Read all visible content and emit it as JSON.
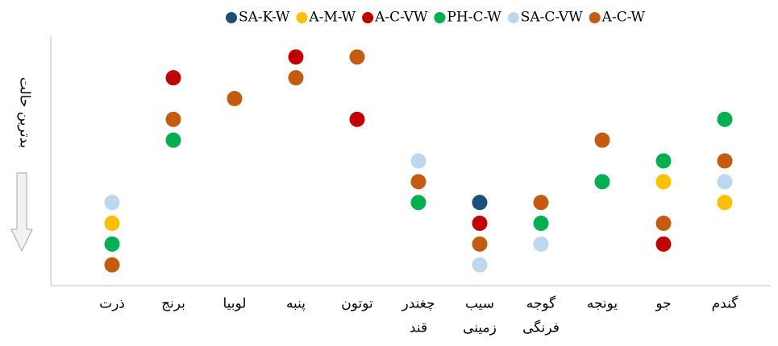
{
  "chart_data": {
    "type": "dot",
    "y_label": "بدترین حالت",
    "categories": [
      [
        "ذرت"
      ],
      [
        "برنج"
      ],
      [
        "لوبیا"
      ],
      [
        "پنبه"
      ],
      [
        "توتون"
      ],
      [
        "چغندر",
        "قند"
      ],
      [
        "سیب",
        "زمینی"
      ],
      [
        "گوجه",
        "فرنگی"
      ],
      [
        "یونجه"
      ],
      [
        "جو"
      ],
      [
        "گندم"
      ]
    ],
    "ylim": [
      0,
      12
    ],
    "legend": "top",
    "series": [
      {
        "name": "SA-K-W",
        "color": "#1f4e79",
        "values": [
          null,
          null,
          null,
          null,
          null,
          null,
          4,
          null,
          null,
          null,
          null
        ]
      },
      {
        "name": "A-M-W",
        "color": "#ffc000",
        "values": [
          3,
          null,
          null,
          null,
          null,
          null,
          null,
          null,
          null,
          5,
          4
        ]
      },
      {
        "name": "A-C-VW",
        "color": "#c00000",
        "values": [
          null,
          10,
          null,
          11,
          8,
          null,
          3,
          null,
          null,
          2,
          null
        ]
      },
      {
        "name": "PH-C-W",
        "color": "#00b050",
        "values": [
          2,
          7,
          null,
          null,
          null,
          4,
          null,
          3,
          5,
          6,
          8
        ]
      },
      {
        "name": "SA-C-VW",
        "color": "#bdd7ee",
        "values": [
          4,
          null,
          null,
          null,
          null,
          6,
          1,
          2,
          null,
          null,
          5
        ]
      },
      {
        "name": "A-C-W",
        "color": "#c55a11",
        "values": [
          1,
          8,
          9,
          10,
          11,
          5,
          2,
          4,
          7,
          3,
          6
        ]
      }
    ]
  }
}
